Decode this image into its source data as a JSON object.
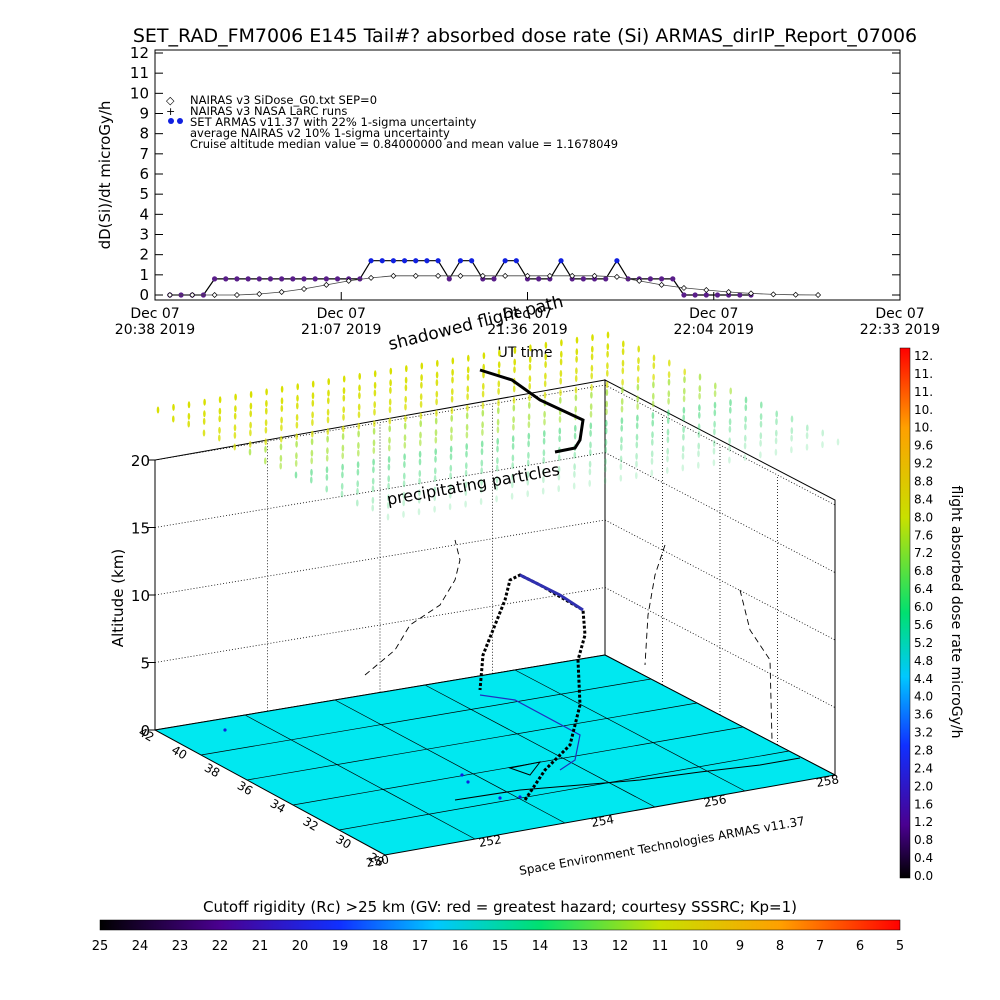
{
  "title": "SET_RAD_FM7006  E145 Tail#? absorbed dose rate (Si) ARMAS_dirIP_Report_07006",
  "chart_data": [
    {
      "type": "line",
      "ylabel": "dD(Si)/dt microGy/h",
      "xlabel": "UT time",
      "ylim": [
        0,
        12
      ],
      "yticks": [
        "0",
        "1",
        "2",
        "3",
        "4",
        "5",
        "6",
        "7",
        "8",
        "9",
        "10",
        "11",
        "12"
      ],
      "xticks": [
        {
          "date": "Dec 07",
          "time": "20:38 2019"
        },
        {
          "date": "Dec 07",
          "time": "21:07 2019"
        },
        {
          "date": "Dec 07",
          "time": "21:36 2019"
        },
        {
          "date": "Dec 07",
          "time": "22:04 2019"
        },
        {
          "date": "Dec 07",
          "time": "22:33 2019"
        }
      ],
      "legend": [
        "NAIRAS v3 SiDose_G0.txt SEP=0",
        "NAIRAS v3 NASA LaRC runs",
        "SET ARMAS v11.37 with 22% 1-sigma uncertainty",
        "average NAIRAS v2 10% 1-sigma uncertainty",
        "Cruise altitude median value = 0.84000000 and mean value = 1.1678049"
      ],
      "series": [
        {
          "name": "SET ARMAS v11.37 with 22% 1-sigma uncertainty",
          "color": "#1020e0",
          "x": [
            0.04,
            0.07,
            0.1,
            0.13,
            0.16,
            0.19,
            0.22,
            0.25,
            0.28,
            0.31,
            0.34,
            0.37,
            0.4,
            0.43,
            0.46,
            0.49,
            0.52,
            0.55,
            0.58,
            0.61,
            0.64,
            0.67,
            0.7,
            0.73,
            0.76,
            0.79,
            0.82,
            0.85,
            0.88,
            0.91,
            0.94,
            0.97,
            1.0,
            1.03,
            1.06,
            1.09,
            1.12,
            1.15,
            1.18,
            1.21,
            1.24,
            1.27,
            1.3,
            1.33,
            1.36,
            1.39,
            1.42,
            1.45,
            1.48,
            1.51,
            1.54,
            1.57,
            1.6
          ],
          "values": [
            0,
            0,
            0,
            0,
            0.8,
            0.8,
            0.8,
            0.8,
            0.8,
            0.8,
            0.8,
            0.8,
            0.8,
            0.8,
            0.8,
            0.8,
            0.8,
            0.8,
            1.7,
            1.7,
            1.7,
            1.7,
            1.7,
            1.7,
            1.7,
            0.8,
            1.7,
            1.7,
            0.8,
            0.8,
            1.7,
            1.7,
            0.8,
            0.8,
            0.8,
            1.7,
            0.8,
            0.8,
            0.8,
            0.8,
            1.7,
            0.8,
            0.8,
            0.8,
            0.8,
            0.8,
            0,
            0,
            0,
            0,
            0,
            0,
            0
          ]
        },
        {
          "name": "NAIRAS v3 SiDose_G0.txt SEP=0",
          "color": "#000000",
          "x": [
            0.04,
            0.1,
            0.16,
            0.22,
            0.28,
            0.34,
            0.4,
            0.46,
            0.52,
            0.58,
            0.64,
            0.7,
            0.76,
            0.82,
            0.88,
            0.94,
            1.0,
            1.06,
            1.12,
            1.18,
            1.24,
            1.3,
            1.36,
            1.42,
            1.48,
            1.54,
            1.6,
            1.66,
            1.72,
            1.78
          ],
          "values": [
            0,
            0,
            0,
            0,
            0.05,
            0.15,
            0.3,
            0.5,
            0.7,
            0.85,
            0.95,
            0.95,
            0.95,
            0.95,
            0.95,
            0.95,
            0.95,
            0.95,
            0.95,
            0.95,
            0.9,
            0.7,
            0.5,
            0.35,
            0.25,
            0.15,
            0.08,
            0.03,
            0.01,
            0
          ]
        }
      ]
    },
    {
      "type": "scatter",
      "ylabel": "Altitude (km)",
      "zticks": [
        "0",
        "5",
        "10",
        "15",
        "20"
      ],
      "lat_ticks": [
        "42",
        "40",
        "38",
        "36",
        "34",
        "32",
        "30",
        "28"
      ],
      "lon_ticks": [
        "250",
        "252",
        "254",
        "256",
        "258"
      ],
      "annotations": [
        "shadowed flight path",
        "precipitating particles"
      ],
      "credit": "Space Environment Technologies ARMAS v11.37"
    }
  ],
  "colorbar_right": {
    "label": "flight absorbed dose rate microGy/h",
    "ticks": [
      "12.",
      "11.",
      "11.",
      "10.",
      "10.",
      "9.6",
      "9.2",
      "8.8",
      "8.4",
      "8.0",
      "7.6",
      "7.2",
      "6.8",
      "6.4",
      "6.0",
      "5.6",
      "5.2",
      "4.8",
      "4.4",
      "4.0",
      "3.6",
      "3.2",
      "2.8",
      "2.4",
      "2.0",
      "1.6",
      "1.2",
      "0.8",
      "0.4",
      "0.0"
    ]
  },
  "colorbar_bottom": {
    "label": "Cutoff rigidity (Rc) >25 km (GV: red = greatest hazard; courtesy SSSRC; Kp=1)",
    "ticks": [
      "25",
      "24",
      "23",
      "22",
      "21",
      "20",
      "19",
      "18",
      "17",
      "16",
      "15",
      "14",
      "13",
      "12",
      "11",
      "10",
      "9",
      "8",
      "7",
      "6",
      "5"
    ]
  }
}
